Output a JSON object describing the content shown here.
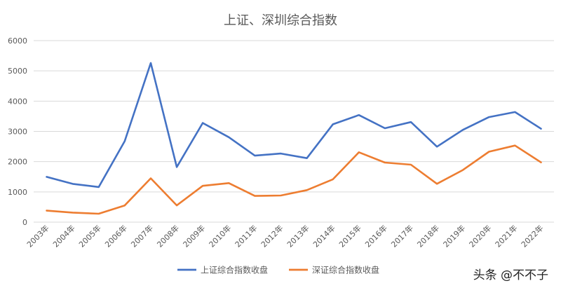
{
  "chart_data": {
    "type": "line",
    "title": "上证、深圳综合指数",
    "xlabel": "",
    "ylabel": "",
    "categories": [
      "2003年",
      "2004年",
      "2005年",
      "2006年",
      "2007年",
      "2008年",
      "2009年",
      "2010年",
      "2011年",
      "2012年",
      "2013年",
      "2014年",
      "2015年",
      "2016年",
      "2017年",
      "2018年",
      "2019年",
      "2020年",
      "2021年",
      "2022年"
    ],
    "series": [
      {
        "name": "上证综合指数收盘",
        "color": "#4472C4",
        "values": [
          1497,
          1266,
          1161,
          2675,
          5262,
          1821,
          3277,
          2808,
          2199,
          2269,
          2116,
          3235,
          3539,
          3104,
          3307,
          2494,
          3050,
          3473,
          3640,
          3089
        ]
      },
      {
        "name": "深证综合指数收盘",
        "color": "#ED7D31",
        "values": [
          379,
          315,
          278,
          551,
          1447,
          553,
          1201,
          1291,
          867,
          881,
          1058,
          1415,
          2309,
          1970,
          1899,
          1267,
          1723,
          2329,
          2531,
          1975
        ]
      }
    ],
    "ylim": [
      0,
      6000
    ],
    "yticks": [
      "0",
      "1000",
      "2000",
      "3000",
      "4000",
      "5000",
      "6000"
    ],
    "grid": true,
    "legend": "bottom"
  },
  "watermark": "头条 @不不子"
}
